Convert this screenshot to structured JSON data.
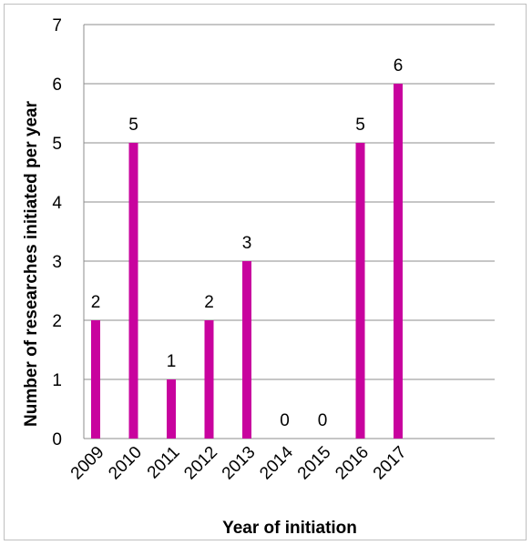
{
  "chart_data": {
    "type": "bar",
    "categories": [
      "2009",
      "2010",
      "2011",
      "2012",
      "2013",
      "2014",
      "2015",
      "2016",
      "2017"
    ],
    "values": [
      2,
      5,
      1,
      2,
      3,
      0,
      0,
      5,
      6
    ],
    "xlabel": "Year of initiation",
    "ylabel": "Number of researches initiated per year",
    "ylim": [
      0,
      7
    ],
    "yticks": [
      "0",
      "1",
      "2",
      "3",
      "4",
      "5",
      "6",
      "7"
    ],
    "grid": true,
    "legend": "none",
    "bar_color": "#c8039e"
  }
}
